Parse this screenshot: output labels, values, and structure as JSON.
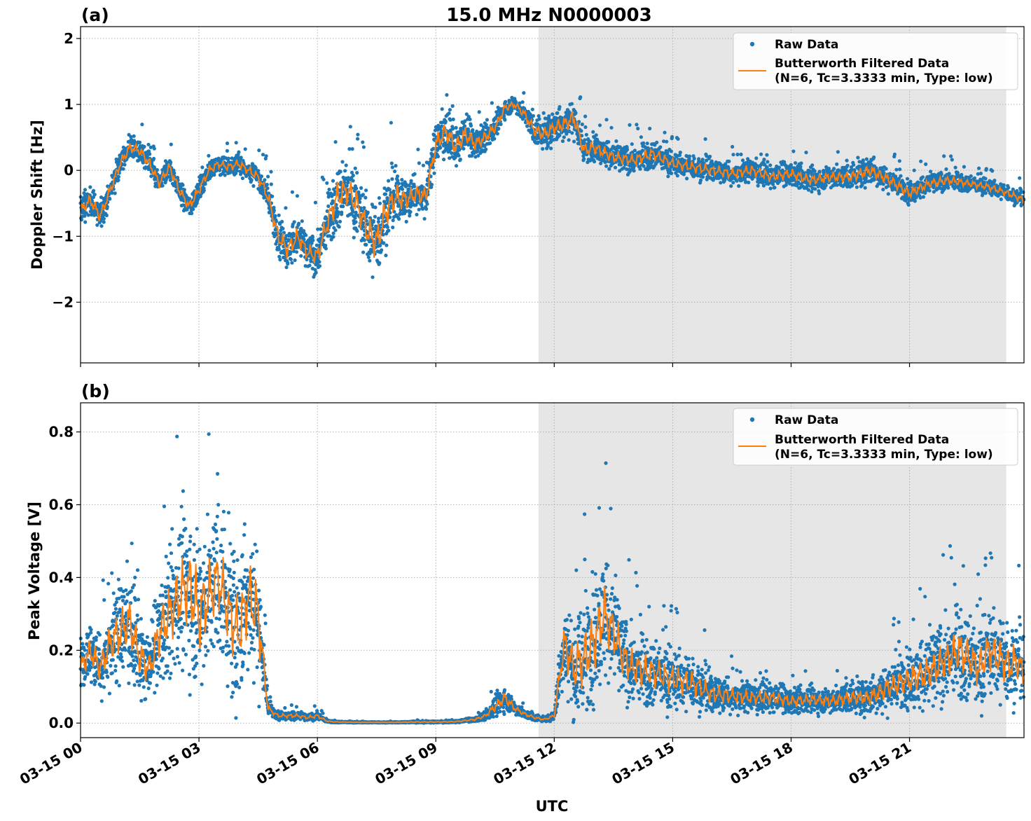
{
  "figure": {
    "title": "15.0 MHz N0000003",
    "xlabel": "UTC"
  },
  "colors": {
    "raw": "#1f77b4",
    "filtered": "#ff7f0e",
    "night_shade": "#e6e6e6"
  },
  "chart_data": [
    {
      "type": "scatter",
      "panel_label": "(a)",
      "ylabel": "Doppler Shift [Hz]",
      "xlim_hours": [
        0,
        23.9
      ],
      "ylim": [
        -2.92,
        2.18
      ],
      "yticks": [
        -2,
        -1,
        0,
        1,
        2
      ],
      "ytick_labels": [
        "−2",
        "−1",
        "0",
        "1",
        "2"
      ],
      "xticks_hours": [
        0,
        3,
        6,
        9,
        12,
        15,
        18,
        21
      ],
      "xtick_labels": [
        "03-15 00",
        "03-15 03",
        "03-15 06",
        "03-15 09",
        "03-15 12",
        "03-15 15",
        "03-15 18",
        "03-15 21"
      ],
      "shaded_span_hours": [
        11.6,
        23.45
      ],
      "legend": {
        "location": "upper right",
        "raw_label": "Raw Data",
        "filtered_label_line1": "Butterworth Filtered Data",
        "filtered_label_line2": "(N=6, Tc=3.3333 min, Type: low)"
      },
      "series": [
        {
          "name": "Butterworth Filtered Data",
          "x": [
            0,
            0.25,
            0.5,
            0.75,
            1.0,
            1.25,
            1.5,
            1.75,
            2.0,
            2.25,
            2.5,
            2.75,
            3.0,
            3.25,
            3.5,
            3.75,
            4.0,
            4.25,
            4.5,
            4.75,
            5.0,
            5.25,
            5.5,
            5.75,
            6.0,
            6.25,
            6.5,
            6.75,
            7.0,
            7.25,
            7.5,
            7.75,
            8.0,
            8.25,
            8.5,
            8.75,
            9.0,
            9.25,
            9.5,
            9.75,
            10.0,
            10.25,
            10.5,
            10.75,
            11.0,
            11.25,
            11.5,
            11.75,
            12.0,
            12.25,
            12.5,
            12.75,
            13.0,
            13.5,
            14.0,
            14.5,
            15.0,
            15.5,
            16.0,
            16.5,
            17.0,
            17.5,
            18.0,
            18.5,
            19.0,
            19.5,
            20.0,
            20.5,
            21.0,
            21.5,
            22.0,
            22.5,
            23.0,
            23.5,
            23.9
          ],
          "y": [
            -0.6,
            -0.45,
            -0.7,
            -0.3,
            0.1,
            0.35,
            0.3,
            0.1,
            -0.2,
            0.05,
            -0.3,
            -0.55,
            -0.3,
            0.0,
            0.1,
            0.05,
            0.1,
            0.0,
            -0.1,
            -0.4,
            -1.0,
            -1.2,
            -1.0,
            -1.25,
            -1.3,
            -0.8,
            -0.4,
            -0.3,
            -0.5,
            -0.9,
            -1.1,
            -0.6,
            -0.4,
            -0.45,
            -0.35,
            -0.4,
            0.4,
            0.6,
            0.35,
            0.55,
            0.4,
            0.5,
            0.65,
            0.95,
            1.0,
            0.85,
            0.6,
            0.55,
            0.65,
            0.7,
            0.8,
            0.3,
            0.35,
            0.2,
            0.15,
            0.25,
            0.1,
            0.05,
            0.0,
            -0.05,
            0.0,
            -0.1,
            -0.05,
            -0.15,
            -0.1,
            -0.1,
            0.0,
            -0.15,
            -0.35,
            -0.2,
            -0.15,
            -0.2,
            -0.25,
            -0.35,
            -0.45
          ]
        },
        {
          "name": "Raw Data",
          "spread": [
            0.35,
            0.35,
            0.4,
            0.3,
            0.3,
            0.3,
            0.3,
            0.3,
            0.3,
            0.3,
            0.3,
            0.3,
            0.3,
            0.25,
            0.25,
            0.25,
            0.25,
            0.25,
            0.3,
            0.4,
            0.5,
            0.55,
            0.5,
            0.45,
            0.55,
            0.7,
            0.8,
            0.8,
            0.8,
            0.9,
            1.0,
            0.9,
            0.7,
            0.6,
            0.5,
            0.5,
            0.55,
            0.6,
            0.5,
            0.5,
            0.4,
            0.35,
            0.3,
            0.25,
            0.2,
            0.25,
            0.35,
            0.4,
            0.4,
            0.45,
            0.5,
            0.4,
            0.35,
            0.35,
            0.35,
            0.35,
            0.3,
            0.3,
            0.3,
            0.3,
            0.3,
            0.3,
            0.3,
            0.3,
            0.3,
            0.3,
            0.35,
            0.3,
            0.3,
            0.25,
            0.25,
            0.2,
            0.2,
            0.2,
            0.2
          ]
        }
      ]
    },
    {
      "type": "scatter",
      "panel_label": "(b)",
      "ylabel": "Peak Voltage [V]",
      "xlim_hours": [
        0,
        23.9
      ],
      "ylim": [
        -0.04,
        0.88
      ],
      "yticks": [
        0.0,
        0.2,
        0.4,
        0.6,
        0.8
      ],
      "ytick_labels": [
        "0.0",
        "0.2",
        "0.4",
        "0.6",
        "0.8"
      ],
      "xticks_hours": [
        0,
        3,
        6,
        9,
        12,
        15,
        18,
        21
      ],
      "xtick_labels": [
        "03-15 00",
        "03-15 03",
        "03-15 06",
        "03-15 09",
        "03-15 12",
        "03-15 15",
        "03-15 18",
        "03-15 21"
      ],
      "shaded_span_hours": [
        11.6,
        23.45
      ],
      "legend": {
        "location": "upper right",
        "raw_label": "Raw Data",
        "filtered_label_line1": "Butterworth Filtered Data",
        "filtered_label_line2": "(N=6, Tc=3.3333 min, Type: low)"
      },
      "series": [
        {
          "name": "Butterworth Filtered Data",
          "x": [
            0,
            0.25,
            0.5,
            0.75,
            1.0,
            1.25,
            1.5,
            1.75,
            2.0,
            2.25,
            2.5,
            2.75,
            3.0,
            3.25,
            3.5,
            3.75,
            4.0,
            4.25,
            4.5,
            4.75,
            5.0,
            5.25,
            5.5,
            5.75,
            6.0,
            6.25,
            6.5,
            7.0,
            7.5,
            8.0,
            8.5,
            9.0,
            9.5,
            10.0,
            10.25,
            10.5,
            10.75,
            11.0,
            11.25,
            11.5,
            11.75,
            12.0,
            12.25,
            12.5,
            12.75,
            13.0,
            13.25,
            13.5,
            13.75,
            14.0,
            14.5,
            15.0,
            15.5,
            16.0,
            16.5,
            17.0,
            17.5,
            18.0,
            18.5,
            19.0,
            19.5,
            20.0,
            20.5,
            21.0,
            21.5,
            22.0,
            22.25,
            22.5,
            22.75,
            23.0,
            23.25,
            23.5,
            23.75,
            23.9
          ],
          "y": [
            0.15,
            0.2,
            0.15,
            0.22,
            0.25,
            0.28,
            0.18,
            0.15,
            0.25,
            0.3,
            0.35,
            0.38,
            0.3,
            0.35,
            0.4,
            0.3,
            0.25,
            0.35,
            0.3,
            0.04,
            0.02,
            0.02,
            0.02,
            0.015,
            0.02,
            0.005,
            0.003,
            0.002,
            0.002,
            0.002,
            0.003,
            0.003,
            0.004,
            0.01,
            0.02,
            0.045,
            0.07,
            0.04,
            0.025,
            0.015,
            0.01,
            0.02,
            0.22,
            0.15,
            0.18,
            0.22,
            0.3,
            0.25,
            0.18,
            0.15,
            0.14,
            0.12,
            0.11,
            0.08,
            0.075,
            0.07,
            0.07,
            0.06,
            0.065,
            0.06,
            0.07,
            0.07,
            0.1,
            0.12,
            0.14,
            0.18,
            0.2,
            0.18,
            0.15,
            0.2,
            0.18,
            0.16,
            0.17,
            0.13
          ]
        },
        {
          "name": "Raw Data",
          "spread": [
            0.12,
            0.15,
            0.15,
            0.2,
            0.25,
            0.25,
            0.2,
            0.15,
            0.25,
            0.3,
            0.35,
            0.4,
            0.4,
            0.35,
            0.35,
            0.35,
            0.35,
            0.35,
            0.35,
            0.03,
            0.02,
            0.02,
            0.02,
            0.015,
            0.02,
            0.005,
            0.003,
            0.002,
            0.002,
            0.002,
            0.004,
            0.004,
            0.005,
            0.01,
            0.02,
            0.05,
            0.06,
            0.03,
            0.02,
            0.015,
            0.01,
            0.02,
            0.2,
            0.25,
            0.3,
            0.3,
            0.3,
            0.25,
            0.2,
            0.18,
            0.15,
            0.15,
            0.12,
            0.1,
            0.08,
            0.07,
            0.07,
            0.06,
            0.06,
            0.06,
            0.07,
            0.08,
            0.12,
            0.14,
            0.18,
            0.2,
            0.22,
            0.2,
            0.2,
            0.2,
            0.2,
            0.2,
            0.18,
            0.15
          ]
        }
      ]
    }
  ]
}
